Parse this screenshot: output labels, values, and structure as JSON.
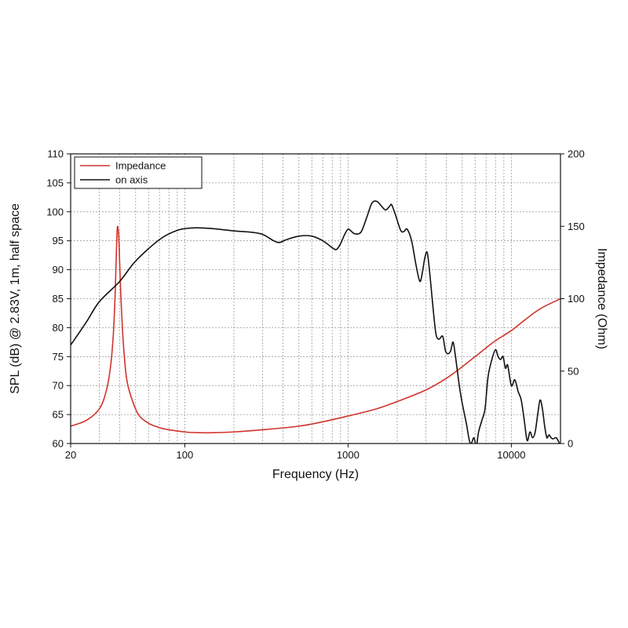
{
  "chart_data": {
    "type": "line",
    "title": "",
    "xlabel": "Frequency (Hz)",
    "ylabel": "SPL (dB) @ 2.83V, 1m, half space",
    "y2label": "Impedance (Ohm)",
    "x_scale": "log",
    "xlim": [
      20,
      20000
    ],
    "ylim": [
      60,
      110
    ],
    "y2lim": [
      0,
      200
    ],
    "x_tick_labels": [
      "20",
      "100",
      "1000",
      "10000"
    ],
    "x_ticks": [
      20,
      100,
      1000,
      10000
    ],
    "y_ticks": [
      60,
      65,
      70,
      75,
      80,
      85,
      90,
      95,
      100,
      105,
      110
    ],
    "y2_ticks": [
      0,
      50,
      100,
      150,
      200
    ],
    "grid": true,
    "legend_position": "top-left",
    "series": [
      {
        "name": "Impedance",
        "axis": "right",
        "color": "#d0342c",
        "points": [
          [
            20,
            12
          ],
          [
            25,
            16
          ],
          [
            30,
            24
          ],
          [
            33,
            36
          ],
          [
            35,
            52
          ],
          [
            36.5,
            75
          ],
          [
            37.5,
            105
          ],
          [
            38.3,
            140
          ],
          [
            38.8,
            150
          ],
          [
            39.5,
            140
          ],
          [
            40.5,
            105
          ],
          [
            42,
            70
          ],
          [
            44,
            45
          ],
          [
            47,
            32
          ],
          [
            52,
            20
          ],
          [
            60,
            14
          ],
          [
            70,
            11
          ],
          [
            80,
            9.5
          ],
          [
            100,
            8
          ],
          [
            120,
            7.5
          ],
          [
            150,
            7.5
          ],
          [
            200,
            8
          ],
          [
            300,
            9.5
          ],
          [
            500,
            12
          ],
          [
            700,
            15
          ],
          [
            1000,
            19
          ],
          [
            1500,
            24
          ],
          [
            2000,
            29
          ],
          [
            3000,
            37
          ],
          [
            4000,
            45
          ],
          [
            5000,
            53
          ],
          [
            6000,
            60
          ],
          [
            7000,
            66
          ],
          [
            8000,
            71
          ],
          [
            10000,
            78
          ],
          [
            12000,
            85
          ],
          [
            15000,
            93
          ],
          [
            20000,
            100
          ]
        ]
      },
      {
        "name": "on axis",
        "axis": "left",
        "color": "#111111",
        "points": [
          [
            20,
            77
          ],
          [
            25,
            81
          ],
          [
            30,
            84.5
          ],
          [
            40,
            88
          ],
          [
            50,
            91.5
          ],
          [
            70,
            95.2
          ],
          [
            90,
            96.8
          ],
          [
            110,
            97.2
          ],
          [
            130,
            97.2
          ],
          [
            160,
            97
          ],
          [
            200,
            96.7
          ],
          [
            250,
            96.5
          ],
          [
            300,
            96.1
          ],
          [
            350,
            95
          ],
          [
            380,
            94.7
          ],
          [
            420,
            95.2
          ],
          [
            500,
            95.8
          ],
          [
            600,
            95.8
          ],
          [
            700,
            95
          ],
          [
            800,
            93.8
          ],
          [
            850,
            93.5
          ],
          [
            900,
            94.5
          ],
          [
            950,
            96
          ],
          [
            1000,
            97
          ],
          [
            1050,
            96.6
          ],
          [
            1100,
            96.2
          ],
          [
            1200,
            96.5
          ],
          [
            1300,
            99
          ],
          [
            1400,
            101.5
          ],
          [
            1500,
            101.8
          ],
          [
            1600,
            101
          ],
          [
            1700,
            100.3
          ],
          [
            1800,
            101
          ],
          [
            1850,
            101.2
          ],
          [
            1950,
            99.5
          ],
          [
            2100,
            96.8
          ],
          [
            2200,
            96.6
          ],
          [
            2300,
            97
          ],
          [
            2450,
            95
          ],
          [
            2600,
            91
          ],
          [
            2750,
            88
          ],
          [
            2850,
            89.5
          ],
          [
            2950,
            92
          ],
          [
            3050,
            93
          ],
          [
            3150,
            90
          ],
          [
            3300,
            84
          ],
          [
            3450,
            79
          ],
          [
            3600,
            78
          ],
          [
            3800,
            78.5
          ],
          [
            3950,
            76
          ],
          [
            4100,
            75.5
          ],
          [
            4250,
            76
          ],
          [
            4400,
            77.5
          ],
          [
            4550,
            75
          ],
          [
            4800,
            70
          ],
          [
            5000,
            67
          ],
          [
            5300,
            63.5
          ],
          [
            5600,
            60
          ],
          [
            5900,
            61
          ],
          [
            6100,
            59.5
          ],
          [
            6300,
            62
          ],
          [
            6600,
            64
          ],
          [
            6900,
            66
          ],
          [
            7200,
            71.5
          ],
          [
            7600,
            74.5
          ],
          [
            8000,
            76.2
          ],
          [
            8300,
            75
          ],
          [
            8600,
            74.5
          ],
          [
            8900,
            75
          ],
          [
            9200,
            73
          ],
          [
            9500,
            73.5
          ],
          [
            10000,
            70
          ],
          [
            10500,
            71
          ],
          [
            11000,
            69
          ],
          [
            11500,
            67.5
          ],
          [
            12000,
            64
          ],
          [
            12500,
            60.5
          ],
          [
            13000,
            62
          ],
          [
            13500,
            61
          ],
          [
            14000,
            62
          ],
          [
            14500,
            65
          ],
          [
            15000,
            67.5
          ],
          [
            15500,
            66
          ],
          [
            16000,
            63
          ],
          [
            16500,
            61
          ],
          [
            17000,
            61.5
          ],
          [
            17500,
            61
          ],
          [
            18000,
            60.8
          ],
          [
            18800,
            61
          ],
          [
            19500,
            60.3
          ],
          [
            20000,
            59.5
          ]
        ]
      }
    ]
  }
}
